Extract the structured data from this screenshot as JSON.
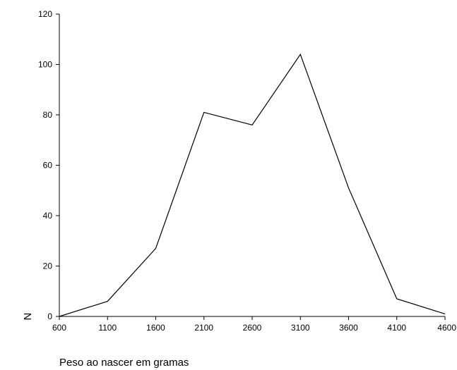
{
  "chart_data": {
    "type": "line",
    "xlabel": "Peso ao nascer em gramas",
    "ylabel": "N",
    "x": [
      600,
      1100,
      1600,
      2100,
      2600,
      3100,
      3600,
      4100,
      4600
    ],
    "xticks": [
      "600",
      "1100",
      "1600",
      "2100",
      "2600",
      "3100",
      "3600",
      "4100",
      "4600"
    ],
    "yticks": [
      "0",
      "20",
      "40",
      "60",
      "80",
      "100",
      "120"
    ],
    "xlim": [
      600,
      4600
    ],
    "ylim": [
      0,
      120
    ],
    "series": [
      {
        "values": [
          0,
          6,
          27,
          81,
          76,
          104,
          51,
          7,
          1
        ]
      }
    ],
    "grid": false,
    "legend": "none",
    "colors": {
      "line": "#000000",
      "axis": "#000000",
      "background": "#ffffff"
    }
  }
}
